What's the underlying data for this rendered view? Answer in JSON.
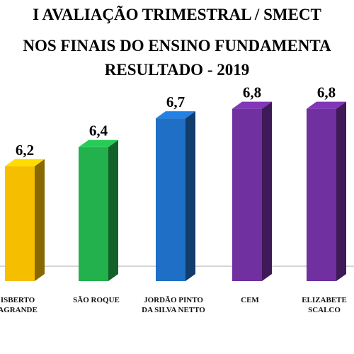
{
  "chart_data": {
    "type": "bar3d",
    "title": [
      "I AVALIAÇÃO TRIMESTRAL / SMECT",
      "NOS FINAIS DO ENSINO FUNDAMENTA",
      "RESULTADO - 2019"
    ],
    "categories": [
      "ISBERTO AGRANDE",
      "SÃO ROQUE",
      "JORDÃO PINTO DA SILVA NETTO",
      "CEM",
      "ELIZABETE SCALCO"
    ],
    "values": [
      6.2,
      6.4,
      6.7,
      6.8,
      6.8
    ],
    "value_labels": [
      "6,2",
      "6,4",
      "6,7",
      "6,8",
      "6,8"
    ],
    "colors": [
      "#f5bf00",
      "#22b14c",
      "#1f6fc6",
      "#7030a0",
      "#7030a0"
    ],
    "ylim": [
      5,
      7.7
    ]
  }
}
